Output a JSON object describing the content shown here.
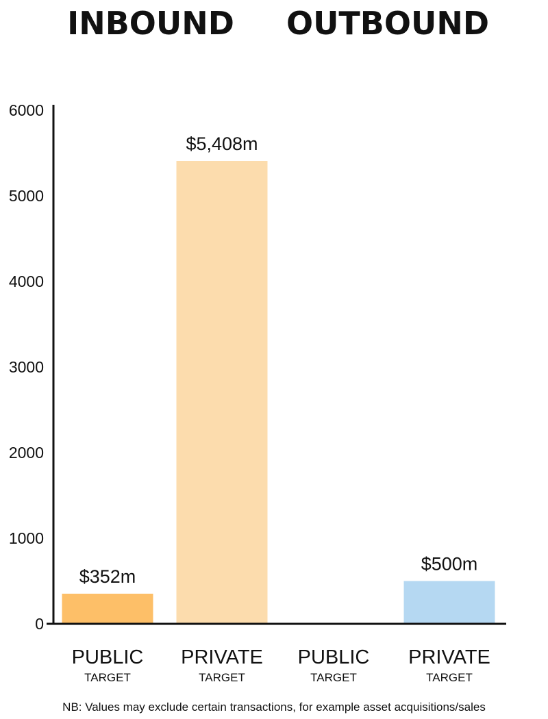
{
  "chart_data": {
    "type": "bar",
    "groups": [
      {
        "name": "INBOUND",
        "categories": [
          0,
          1
        ]
      },
      {
        "name": "OUTBOUND",
        "categories": [
          2,
          3
        ]
      }
    ],
    "categories": [
      {
        "label": "PUBLIC",
        "sublabel": "TARGET"
      },
      {
        "label": "PRIVATE",
        "sublabel": "TARGET"
      },
      {
        "label": "PUBLIC",
        "sublabel": "TARGET"
      },
      {
        "label": "PRIVATE",
        "sublabel": "TARGET"
      }
    ],
    "values": [
      352,
      5408,
      0,
      500
    ],
    "data_labels": [
      "$352m",
      "$5,408m",
      "",
      "$500m"
    ],
    "colors": [
      "#fdbf68",
      "#fcdcad",
      "#fcdcad",
      "#b5d8f2"
    ],
    "ylim": [
      0,
      6000
    ],
    "yticks": [
      0,
      1000,
      2000,
      3000,
      4000,
      5000,
      6000
    ],
    "ytick_labels": [
      "0",
      "1000",
      "2000",
      "3000",
      "4000",
      "5000",
      "6000"
    ],
    "grid": false,
    "footnote": "NB: Values may exclude certain transactions, for example asset acquisitions/sales"
  }
}
